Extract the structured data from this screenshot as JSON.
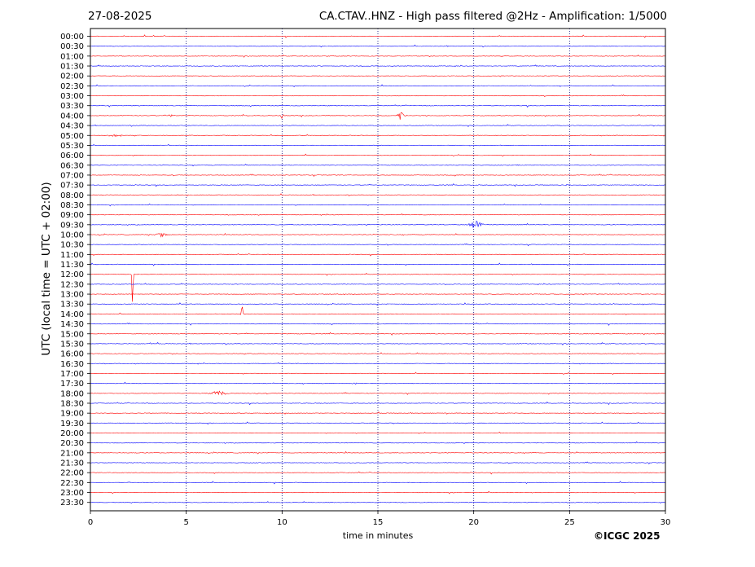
{
  "header": {
    "date": "27-08-2025",
    "title": "CA.CTAV..HNZ - High pass filtered @2Hz - Amplification: 1/5000"
  },
  "footer": {
    "credit": "©ICGC 2025"
  },
  "chart_data": {
    "type": "line",
    "title": "CA.CTAV..HNZ - High pass filtered @2Hz - Amplification: 1/5000",
    "xlabel": "time in minutes",
    "ylabel": "UTC (local time = UTC + 02:00)",
    "xlim": [
      0,
      30
    ],
    "x_ticks": [
      0,
      5,
      10,
      15,
      20,
      25,
      30
    ],
    "row_labels": [
      "00:00",
      "00:30",
      "01:00",
      "01:30",
      "02:00",
      "02:30",
      "03:00",
      "03:30",
      "04:00",
      "04:30",
      "05:00",
      "05:30",
      "06:00",
      "06:30",
      "07:00",
      "07:30",
      "08:00",
      "08:30",
      "09:00",
      "09:30",
      "10:00",
      "10:30",
      "11:00",
      "11:30",
      "12:00",
      "12:30",
      "13:00",
      "13:30",
      "14:00",
      "14:30",
      "15:00",
      "15:30",
      "16:00",
      "16:30",
      "17:00",
      "17:30",
      "18:00",
      "18:30",
      "19:00",
      "19:30",
      "20:00",
      "20:30",
      "21:00",
      "21:30",
      "22:00",
      "22:30",
      "23:00",
      "23:30"
    ],
    "trace_colors": [
      "#ff0000",
      "#0000ff"
    ],
    "grid": "vertical dotted at 5-minute intervals",
    "events": [
      {
        "row": "04:00",
        "minute": 10.0,
        "amp": 5,
        "dur": 0.15
      },
      {
        "row": "04:00",
        "minute": 16.2,
        "amp": 7,
        "dur": 0.4
      },
      {
        "row": "04:00",
        "minute": 4.2,
        "amp": 2,
        "dur": 0.3
      },
      {
        "row": "09:30",
        "minute": 20.1,
        "amp": 7,
        "dur": 0.6
      },
      {
        "row": "10:00",
        "minute": 3.7,
        "amp": 3,
        "dur": 0.6
      },
      {
        "row": "12:00",
        "minute": 2.2,
        "amp": 55,
        "dur": 0.08
      },
      {
        "row": "14:00",
        "minute": 7.9,
        "amp": 20,
        "dur": 0.1
      },
      {
        "row": "18:00",
        "minute": 6.7,
        "amp": 4,
        "dur": 0.8
      },
      {
        "row": "05:00",
        "minute": 1.2,
        "amp": 2,
        "dur": 0.8
      },
      {
        "row": "06:30",
        "minute": 22.3,
        "amp": 2,
        "dur": 0.2
      },
      {
        "row": "07:30",
        "minute": 24.9,
        "amp": 2.5,
        "dur": 0.2
      },
      {
        "row": "15:30",
        "minute": 3.1,
        "amp": 1.5,
        "dur": 0.2
      },
      {
        "row": "17:30",
        "minute": 13.8,
        "amp": 2,
        "dur": 0.3
      }
    ]
  }
}
